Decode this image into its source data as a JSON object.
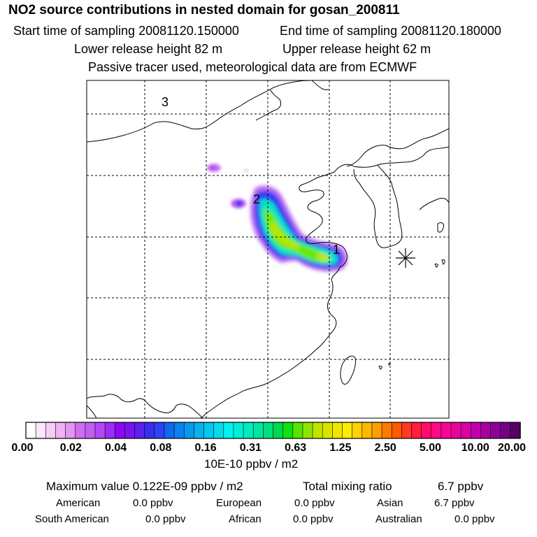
{
  "header": {
    "title": "NO2 source contributions in nested domain for gosan_200811",
    "start_time": "Start time of sampling 20081120.150000",
    "end_time": "End time of sampling 20081120.180000",
    "lower_release": "Lower release height   82 m",
    "upper_release": "Upper release height   62 m",
    "tracer_note": "Passive tracer used, meteorological data are from ECMWF"
  },
  "map": {
    "labels": [
      {
        "text": "3"
      },
      {
        "text": "2"
      },
      {
        "text": "1"
      }
    ],
    "receptor_marker": "asterisk-marker"
  },
  "colorbar": {
    "ticks": [
      "0.00",
      "0.02",
      "0.04",
      "0.08",
      "0.16",
      "0.31",
      "0.63",
      "1.25",
      "2.50",
      "5.00",
      "10.00",
      "20.00"
    ],
    "colors": [
      "#ffffff",
      "#fbe6fb",
      "#f7ccf7",
      "#efb2f2",
      "#e196f0",
      "#cf6cf0",
      "#c05ff2",
      "#b14af5",
      "#9e2cf5",
      "#8a0af0",
      "#7a13ee",
      "#5c20f0",
      "#3c2cf0",
      "#2a44f5",
      "#1268ef",
      "#0a82ee",
      "#0a98ee",
      "#08b0ee",
      "#06c8ee",
      "#04dcee",
      "#00f2f0",
      "#00eed6",
      "#00ecbe",
      "#00e6a2",
      "#00e07c",
      "#00d84e",
      "#12e012",
      "#56e400",
      "#8ee400",
      "#c0e400",
      "#d8e400",
      "#eee600",
      "#ffea00",
      "#ffd200",
      "#ffb800",
      "#ff9e00",
      "#ff7a00",
      "#ff5a00",
      "#ff3a20",
      "#ff1d40",
      "#ff0c6a",
      "#ff0a86",
      "#f40696",
      "#e6049c",
      "#d603a2",
      "#c200a8",
      "#a8009e",
      "#8e0094",
      "#740086",
      "#560062"
    ],
    "unit": "10E-10 ppbv / m2"
  },
  "stats": {
    "max_value": "Maximum value  0.122E-09 ppbv / m2",
    "total_label": "Total mixing ratio",
    "total_value": "6.7 ppbv",
    "regions": [
      {
        "name": "American",
        "value": "0.0 ppbv"
      },
      {
        "name": "European",
        "value": "0.0 ppbv"
      },
      {
        "name": "Asian",
        "value": "6.7 ppbv"
      },
      {
        "name": "South American",
        "value": "0.0 ppbv"
      },
      {
        "name": "African",
        "value": "0.0 ppbv"
      },
      {
        "name": "Australian",
        "value": "0.0 ppbv"
      }
    ]
  }
}
